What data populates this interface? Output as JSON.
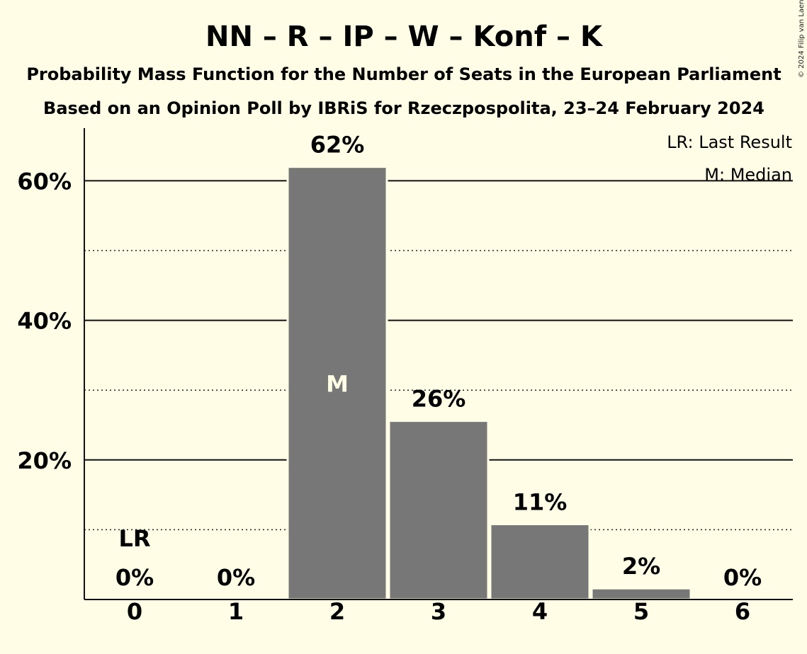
{
  "title": "NN – R – IP – W – Konf – K",
  "subtitle1": "Probability Mass Function for the Number of Seats in the European Parliament",
  "subtitle2": "Based on an Opinion Poll by IBRiS for Rzeczpospolita, 23–24 February 2024",
  "credit": "© 2024 Filip van Laenen",
  "legend": {
    "last_result": "LR: Last Result",
    "median": "M: Median"
  },
  "colors": {
    "background": "#FFFDE5",
    "bar": "#777777",
    "text": "#111111"
  },
  "chart_data": {
    "type": "bar",
    "categories": [
      "0",
      "1",
      "2",
      "3",
      "4",
      "5",
      "6"
    ],
    "values": [
      0,
      0,
      62,
      25.6,
      10.8,
      1.6,
      0
    ],
    "data_labels": [
      "0%",
      "0%",
      "62%",
      "26%",
      "11%",
      "2%",
      "0%"
    ],
    "y_ticks": [
      20,
      40,
      60
    ],
    "y_tick_labels": [
      "20%",
      "40%",
      "60%"
    ],
    "y_minor_ticks": [
      10,
      30,
      50
    ],
    "ylim": [
      0,
      67.5
    ],
    "grid": true,
    "last_result_category": "0",
    "last_result_label": "LR",
    "median_category": "2",
    "median_label": "M",
    "legend_position": "top-right"
  }
}
